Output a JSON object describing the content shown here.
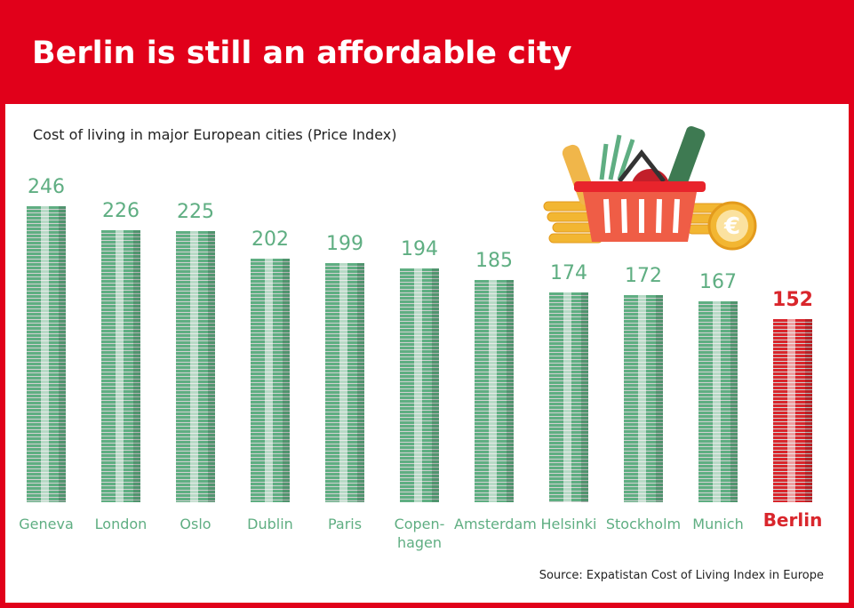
{
  "chart_data": {
    "type": "bar",
    "title": "Berlin is still an affordable city",
    "subtitle": "Cost of living in major European cities (Price Index)",
    "categories": [
      "Geneva",
      "London",
      "Oslo",
      "Dublin",
      "Paris",
      "Copen-\nhagen",
      "Amsterdam",
      "Helsinki",
      "Stockholm",
      "Munich",
      "Berlin"
    ],
    "values": [
      246,
      226,
      225,
      202,
      199,
      194,
      185,
      174,
      172,
      167,
      152
    ],
    "colors": [
      "#5fae82",
      "#5fae82",
      "#5fae82",
      "#5fae82",
      "#5fae82",
      "#5fae82",
      "#5fae82",
      "#5fae82",
      "#5fae82",
      "#5fae82",
      "#d9262c"
    ],
    "source": "Source: Expatistan Cost of Living Index in Europe"
  }
}
